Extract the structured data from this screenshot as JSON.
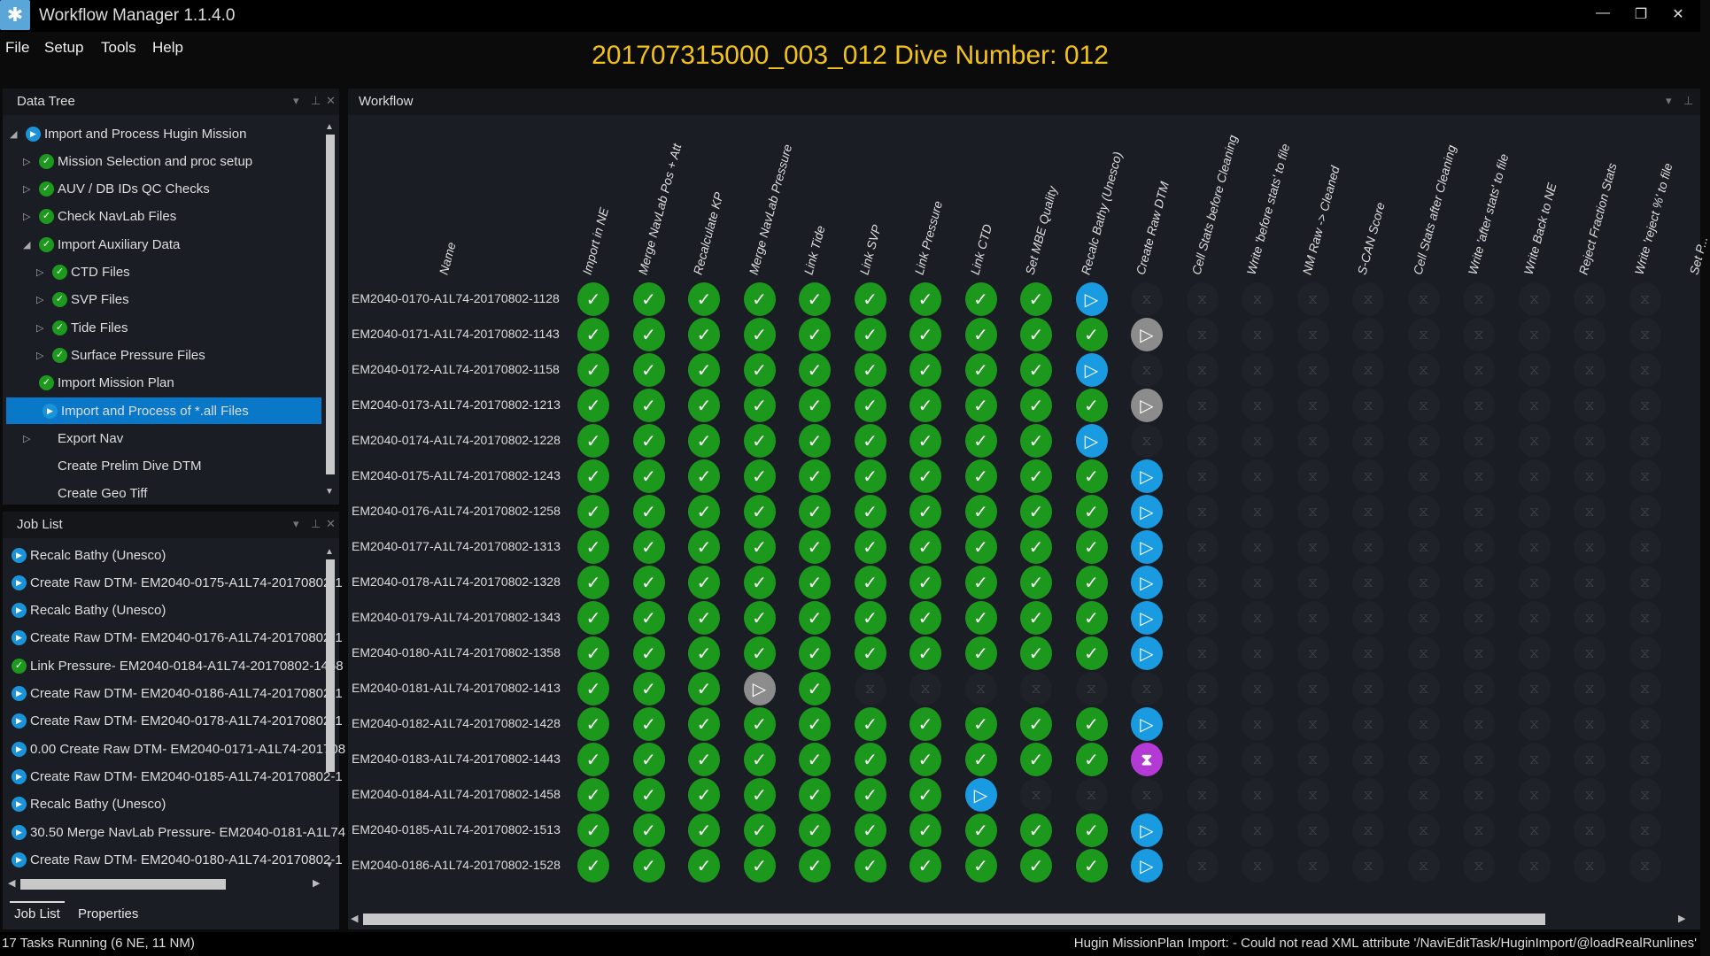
{
  "app": {
    "title": "Workflow Manager 1.1.4.0",
    "window_controls": [
      "—",
      "❐",
      "✕"
    ]
  },
  "menu": [
    "File",
    "Setup",
    "Tools",
    "Help"
  ],
  "dive_title": "201707315000_003_012 Dive Number: 012",
  "data_tree": {
    "title": "Data Tree",
    "items": [
      {
        "label": "Import and Process Hugin Mission",
        "level": 0,
        "expander": "open",
        "icon": "run"
      },
      {
        "label": "Mission Selection and proc setup",
        "level": 1,
        "expander": "closed",
        "icon": "ok"
      },
      {
        "label": "AUV / DB IDs QC Checks",
        "level": 1,
        "expander": "closed",
        "icon": "ok"
      },
      {
        "label": "Check NavLab Files",
        "level": 1,
        "expander": "closed",
        "icon": "ok"
      },
      {
        "label": "Import Auxiliary Data",
        "level": 1,
        "expander": "open",
        "icon": "ok"
      },
      {
        "label": "CTD Files",
        "level": 2,
        "expander": "closed",
        "icon": "ok"
      },
      {
        "label": "SVP Files",
        "level": 2,
        "expander": "closed",
        "icon": "ok"
      },
      {
        "label": "Tide Files",
        "level": 2,
        "expander": "closed",
        "icon": "ok"
      },
      {
        "label": "Surface Pressure Files",
        "level": 2,
        "expander": "closed",
        "icon": "ok"
      },
      {
        "label": "Import Mission Plan",
        "level": 1,
        "expander": "none",
        "icon": "ok"
      },
      {
        "label": "Import and Process of *.all Files",
        "level": 1,
        "expander": "none",
        "icon": "run",
        "selected": true
      },
      {
        "label": "Export Nav",
        "level": 1,
        "expander": "closed",
        "icon": "none"
      },
      {
        "label": "Create Prelim Dive DTM",
        "level": 1,
        "expander": "none",
        "icon": "none"
      },
      {
        "label": "Create Geo Tiff",
        "level": 1,
        "expander": "none",
        "icon": "none"
      }
    ]
  },
  "job_list": {
    "title": "Job List",
    "items": [
      {
        "label": "Recalc Bathy (Unesco)",
        "icon": "run"
      },
      {
        "label": "Create Raw DTM- EM2040-0175-A1L74-20170802-1",
        "icon": "run"
      },
      {
        "label": "Recalc Bathy (Unesco)",
        "icon": "run"
      },
      {
        "label": "Create Raw DTM- EM2040-0176-A1L74-20170802-1",
        "icon": "run"
      },
      {
        "label": "Link Pressure- EM2040-0184-A1L74-20170802-1458",
        "icon": "ok"
      },
      {
        "label": "Create Raw DTM- EM2040-0186-A1L74-20170802-1",
        "icon": "run"
      },
      {
        "label": "Create Raw DTM- EM2040-0178-A1L74-20170802-1",
        "icon": "run"
      },
      {
        "label": "0.00 Create Raw DTM- EM2040-0171-A1L74-201708",
        "icon": "run"
      },
      {
        "label": "Create Raw DTM- EM2040-0185-A1L74-20170802-1",
        "icon": "run"
      },
      {
        "label": "Recalc Bathy (Unesco)",
        "icon": "run"
      },
      {
        "label": "30.50 Merge NavLab Pressure- EM2040-0181-A1L74",
        "icon": "run"
      },
      {
        "label": "Create Raw DTM- EM2040-0180-A1L74-20170802-1",
        "icon": "run"
      }
    ],
    "tabs": [
      "Job List",
      "Properties"
    ]
  },
  "workflow": {
    "title": "Workflow",
    "name_header": "Name",
    "columns": [
      "Import in NE",
      "Merge NavLab Pos + Att",
      "Recalculate KP",
      "Merge NavLab Pressure",
      "Link Tide",
      "Link SVP",
      "Link Pressure",
      "Link CTD",
      "Set MBE Quality",
      "Recalc Bathy (Unesco)",
      "Create Raw DTM",
      "Cell Stats before Cleaning",
      "Write 'before stats' to file",
      "NM Raw -> Cleaned",
      "S-CAN Score",
      "Cell Stats after Cleaning",
      "Write 'after stats' to file",
      "Write Back to NE",
      "Reject Fraction Stats",
      "Write 'reject %' to file",
      "Set P..."
    ],
    "status_legend": {
      "c": "done",
      "b": "running",
      "g": "queued",
      "w": "waiting",
      "p": "pending"
    },
    "status_colors": {
      "done": "#1c991c",
      "running": "#1a9ae0",
      "queued": "#8c8c8c",
      "waiting": "#b43ad6",
      "pending": "#1f2228"
    },
    "rows": [
      {
        "name": "EM2040-0170-A1L74-20170802-1128",
        "status": "cccccccccbppppppppppp"
      },
      {
        "name": "EM2040-0171-A1L74-20170802-1143",
        "status": "ccccccccccgpppppppppp"
      },
      {
        "name": "EM2040-0172-A1L74-20170802-1158",
        "status": "cccccccccbppppppppppp"
      },
      {
        "name": "EM2040-0173-A1L74-20170802-1213",
        "status": "ccccccccccgpppppppppp"
      },
      {
        "name": "EM2040-0174-A1L74-20170802-1228",
        "status": "cccccccccbppppppppppp"
      },
      {
        "name": "EM2040-0175-A1L74-20170802-1243",
        "status": "ccccccccccbpppppppppp"
      },
      {
        "name": "EM2040-0176-A1L74-20170802-1258",
        "status": "ccccccccccbpppppppppp"
      },
      {
        "name": "EM2040-0177-A1L74-20170802-1313",
        "status": "ccccccccccbpppppppppp"
      },
      {
        "name": "EM2040-0178-A1L74-20170802-1328",
        "status": "ccccccccccbpppppppppp"
      },
      {
        "name": "EM2040-0179-A1L74-20170802-1343",
        "status": "ccccccccccbpppppppppp"
      },
      {
        "name": "EM2040-0180-A1L74-20170802-1358",
        "status": "ccccccccccbpppppppppp"
      },
      {
        "name": "EM2040-0181-A1L74-20170802-1413",
        "status": "cccgcpppppppppppppppp"
      },
      {
        "name": "EM2040-0182-A1L74-20170802-1428",
        "status": "ccccccccccbpppppppppp"
      },
      {
        "name": "EM2040-0183-A1L74-20170802-1443",
        "status": "ccccccccccwpppppppppp"
      },
      {
        "name": "EM2040-0184-A1L74-20170802-1458",
        "status": "cccccccbppppppppppppp"
      },
      {
        "name": "EM2040-0185-A1L74-20170802-1513",
        "status": "ccccccccccbpppppppppp"
      },
      {
        "name": "EM2040-0186-A1L74-20170802-1528",
        "status": "ccccccccccbpppppppppp"
      }
    ]
  },
  "status_bar": {
    "left": "17 Tasks Running (6 NE, 11 NM)",
    "right": "Hugin MissionPlan Import:  - Could not read XML attribute '/NaviEditTask/HuginImport/@loadRealRunlines'"
  }
}
